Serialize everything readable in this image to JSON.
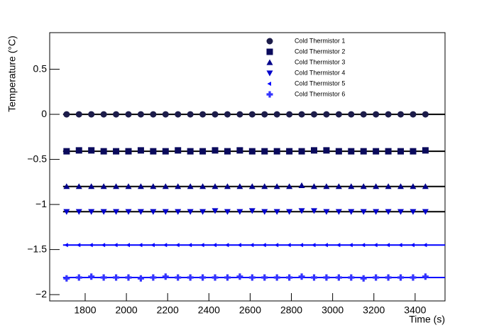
{
  "chart_data": {
    "type": "scatter",
    "y_label": "Temperature (°C)",
    "x_label": "Time (s)",
    "x": [
      1710,
      1770,
      1830,
      1890,
      1950,
      2010,
      2070,
      2130,
      2190,
      2250,
      2310,
      2370,
      2430,
      2490,
      2550,
      2610,
      2670,
      2730,
      2790,
      2850,
      2910,
      2970,
      3030,
      3090,
      3150,
      3210,
      3270,
      3330,
      3390,
      3450
    ],
    "xlim": [
      1628,
      3545
    ],
    "xticks": [
      1800,
      2000,
      2200,
      2400,
      2600,
      2800,
      3000,
      3200,
      3400
    ],
    "ylim": [
      -2.07,
      0.906
    ],
    "yticks": [
      {
        "value": -2,
        "label": "−2"
      },
      {
        "value": -1.5,
        "label": "−1.5"
      },
      {
        "value": -1,
        "label": "−1"
      },
      {
        "value": -0.5,
        "label": "−0.5"
      },
      0,
      0.5
    ],
    "series": [
      {
        "name": "Cold Thermistor 1",
        "color": "#1c1c4a",
        "marker": "circle",
        "fit": 0,
        "fit_color": "#000000",
        "values": [
          0,
          0,
          0,
          0,
          0,
          0,
          0,
          0,
          0,
          0,
          0,
          0,
          0,
          0,
          0,
          0,
          0,
          0,
          0,
          0,
          0,
          0,
          0,
          0,
          0,
          0,
          0,
          0,
          0,
          0
        ]
      },
      {
        "name": "Cold Thermistor 2",
        "color": "#0a0a5c",
        "marker": "square",
        "fit": -0.41,
        "fit_color": "#000000",
        "values": [
          -0.41,
          -0.4,
          -0.4,
          -0.41,
          -0.41,
          -0.41,
          -0.4,
          -0.41,
          -0.41,
          -0.4,
          -0.41,
          -0.41,
          -0.4,
          -0.41,
          -0.4,
          -0.41,
          -0.41,
          -0.41,
          -0.41,
          -0.41,
          -0.4,
          -0.4,
          -0.41,
          -0.41,
          -0.41,
          -0.41,
          -0.41,
          -0.41,
          -0.41,
          -0.4
        ]
      },
      {
        "name": "Cold Thermistor 3",
        "color": "#00008b",
        "marker": "triangle-up",
        "fit": -0.8,
        "fit_color": "#000000",
        "values": [
          -0.8,
          -0.8,
          -0.8,
          -0.8,
          -0.8,
          -0.8,
          -0.8,
          -0.8,
          -0.8,
          -0.8,
          -0.8,
          -0.8,
          -0.8,
          -0.8,
          -0.8,
          -0.8,
          -0.8,
          -0.8,
          -0.8,
          -0.79,
          -0.8,
          -0.8,
          -0.8,
          -0.8,
          -0.8,
          -0.8,
          -0.8,
          -0.8,
          -0.8,
          -0.8
        ]
      },
      {
        "name": "Cold Thermistor 4",
        "color": "#0000cc",
        "marker": "triangle-down",
        "fit": -1.08,
        "fit_color": "#000000",
        "values": [
          -1.08,
          -1.08,
          -1.08,
          -1.08,
          -1.08,
          -1.08,
          -1.08,
          -1.08,
          -1.08,
          -1.08,
          -1.08,
          -1.08,
          -1.07,
          -1.08,
          -1.08,
          -1.07,
          -1.08,
          -1.08,
          -1.08,
          -1.07,
          -1.07,
          -1.08,
          -1.08,
          -1.08,
          -1.08,
          -1.08,
          -1.08,
          -1.08,
          -1.08,
          -1.08
        ]
      },
      {
        "name": "Cold Thermistor 5",
        "color": "#0000ff",
        "marker": "triangle-left",
        "fit": -1.45,
        "fit_color": "#0000ff",
        "values": [
          -1.45,
          -1.45,
          -1.45,
          -1.45,
          -1.45,
          -1.45,
          -1.45,
          -1.45,
          -1.45,
          -1.45,
          -1.45,
          -1.45,
          -1.45,
          -1.45,
          -1.45,
          -1.45,
          -1.45,
          -1.45,
          -1.45,
          -1.45,
          -1.45,
          -1.45,
          -1.45,
          -1.45,
          -1.45,
          -1.45,
          -1.45,
          -1.45,
          -1.45,
          -1.45
        ]
      },
      {
        "name": "Cold Thermistor 6",
        "color": "#3333ff",
        "marker": "cross",
        "fit": -1.81,
        "fit_color": "#0000ff",
        "values": [
          -1.82,
          -1.81,
          -1.8,
          -1.81,
          -1.81,
          -1.81,
          -1.82,
          -1.81,
          -1.8,
          -1.81,
          -1.81,
          -1.81,
          -1.81,
          -1.81,
          -1.8,
          -1.81,
          -1.81,
          -1.81,
          -1.81,
          -1.8,
          -1.81,
          -1.81,
          -1.81,
          -1.81,
          -1.82,
          -1.81,
          -1.81,
          -1.81,
          -1.81,
          -1.8
        ]
      }
    ]
  }
}
